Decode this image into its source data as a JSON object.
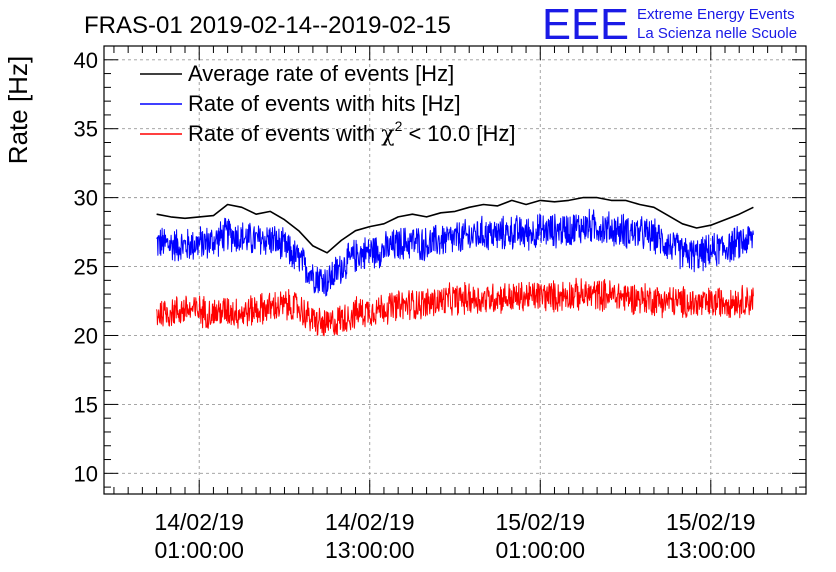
{
  "header": {
    "station_title": "FRAS-01 2019-02-14--2019-02-15",
    "logo_text": "EEE",
    "project_line1": "Extreme Energy Events",
    "project_line2": "La Scienza nelle Scuole"
  },
  "chart_data": {
    "type": "line",
    "title": "FRAS-01 2019-02-14--2019-02-15",
    "ylabel": "Rate [Hz]",
    "xlabel": "",
    "ylim": [
      8.5,
      41
    ],
    "xlim_hours": [
      -6.7,
      42.7
    ],
    "grid": true,
    "legend_position": "top-left",
    "yticks": [
      10,
      15,
      20,
      25,
      30,
      35,
      40
    ],
    "xticks": [
      {
        "hours": 0,
        "date": "14/02/19",
        "time": "01:00:00"
      },
      {
        "hours": 12,
        "date": "14/02/19",
        "time": "13:00:00"
      },
      {
        "hours": 24,
        "date": "15/02/19",
        "time": "01:00:00"
      },
      {
        "hours": 36,
        "date": "15/02/19",
        "time": "13:00:00"
      }
    ],
    "colors": {
      "average": "#000000",
      "hits": "#0000ff",
      "chi2": "#ff0000"
    },
    "series": [
      {
        "name": "Average rate of events [Hz]",
        "key": "average",
        "x_hours": [
          -3,
          -2,
          -1,
          0,
          1,
          2,
          3,
          4,
          5,
          6,
          7,
          8,
          9,
          10,
          11,
          12,
          13,
          14,
          15,
          16,
          17,
          18,
          19,
          20,
          21,
          22,
          23,
          24,
          25,
          26,
          27,
          28,
          29,
          30,
          31,
          32,
          33,
          34,
          35,
          36,
          37,
          38,
          39
        ],
        "values": [
          28.8,
          28.6,
          28.5,
          28.6,
          28.7,
          29.5,
          29.3,
          28.8,
          29.0,
          28.4,
          27.6,
          26.5,
          26.0,
          26.9,
          27.6,
          27.9,
          28.1,
          28.6,
          28.8,
          28.6,
          28.9,
          29.0,
          29.3,
          29.5,
          29.4,
          29.8,
          29.5,
          29.8,
          29.7,
          29.8,
          30.0,
          30.0,
          29.8,
          29.8,
          29.5,
          29.3,
          28.7,
          28.1,
          27.8,
          28.0,
          28.4,
          28.8,
          29.3
        ]
      },
      {
        "name": "Rate of events with hits [Hz]",
        "key": "hits",
        "x_hours": [
          -3,
          -2,
          -1,
          0,
          1,
          2,
          3,
          4,
          5,
          6,
          7,
          8,
          9,
          10,
          11,
          12,
          13,
          14,
          15,
          16,
          17,
          18,
          19,
          20,
          21,
          22,
          23,
          24,
          25,
          26,
          27,
          28,
          29,
          30,
          31,
          32,
          33,
          34,
          35,
          36,
          37,
          38,
          39
        ],
        "values": [
          26.7,
          26.6,
          26.5,
          26.7,
          26.8,
          27.4,
          27.1,
          26.9,
          27.0,
          26.4,
          25.5,
          24.4,
          23.9,
          25.0,
          25.8,
          26.1,
          26.2,
          26.6,
          26.8,
          26.6,
          26.9,
          27.0,
          27.2,
          27.4,
          27.3,
          27.5,
          27.4,
          27.6,
          27.6,
          27.7,
          27.9,
          27.9,
          27.7,
          27.6,
          27.4,
          27.2,
          26.6,
          26.0,
          25.8,
          26.1,
          26.4,
          26.7,
          27.1
        ],
        "noise_amplitude": 1.4
      },
      {
        "name": "Rate of events with χ² < 10.0 [Hz]",
        "key": "chi2",
        "x_hours": [
          -3,
          -2,
          -1,
          0,
          1,
          2,
          3,
          4,
          5,
          6,
          7,
          8,
          9,
          10,
          11,
          12,
          13,
          14,
          15,
          16,
          17,
          18,
          19,
          20,
          21,
          22,
          23,
          24,
          25,
          26,
          27,
          28,
          29,
          30,
          31,
          32,
          33,
          34,
          35,
          36,
          37,
          38,
          39
        ],
        "values": [
          21.6,
          21.7,
          21.9,
          21.8,
          21.6,
          21.8,
          21.6,
          21.9,
          22.0,
          22.2,
          22.0,
          21.1,
          20.7,
          21.2,
          21.6,
          21.8,
          22.0,
          22.1,
          22.3,
          22.3,
          22.5,
          22.6,
          22.7,
          22.6,
          22.8,
          22.7,
          22.8,
          22.9,
          22.8,
          23.0,
          22.9,
          23.0,
          22.9,
          22.8,
          22.7,
          22.6,
          22.5,
          22.4,
          22.3,
          22.3,
          22.5,
          22.5,
          22.6
        ],
        "noise_amplitude": 1.3
      }
    ],
    "legend": [
      {
        "key": "average",
        "label": "Average rate of events [Hz]"
      },
      {
        "key": "hits",
        "label": "Rate of events with hits [Hz]"
      },
      {
        "key": "chi2",
        "label_prefix": "Rate of events with ",
        "symbol": "χ",
        "superscript": "2",
        "label_suffix": " < 10.0 [Hz]"
      }
    ]
  }
}
